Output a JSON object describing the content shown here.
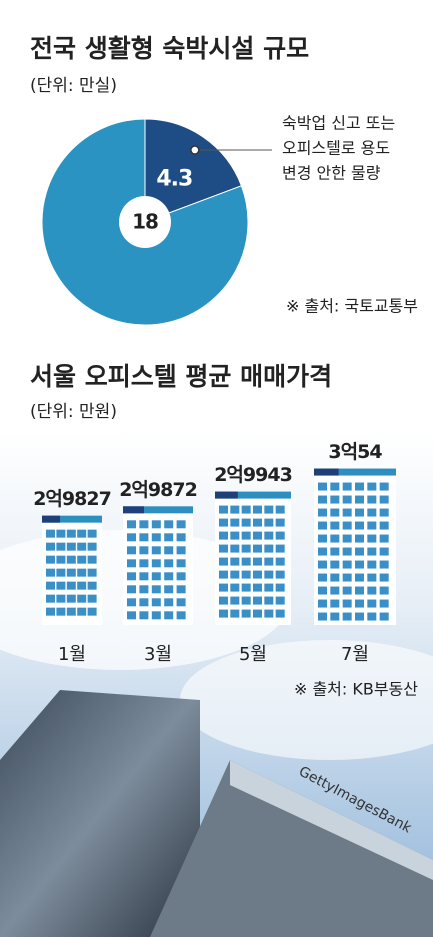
{
  "chart_data": [
    {
      "type": "pie",
      "title": "전국 생활형 숙박시설 규모",
      "subtitle": "(단위: 만실)",
      "values": [
        4.3,
        18
      ],
      "colors": [
        "#1e4d85",
        "#2a93c2"
      ],
      "annotation": [
        "숙박업 신고 또는",
        "오피스텔로 용도",
        "변경 안한 물량"
      ],
      "source": "※ 출처: 국토교통부"
    },
    {
      "type": "bar",
      "title": "서울 오피스텔 평균 매매가격",
      "subtitle": "(단위: 만원)",
      "categories": [
        "1월",
        "3월",
        "5월",
        "7월"
      ],
      "values": [
        29827,
        29872,
        29943,
        30054
      ],
      "value_labels": [
        "2억9827",
        "2억9872",
        "2억9943",
        "3억54"
      ],
      "ylim": [
        29300,
        30100
      ],
      "color": "#ffffff",
      "source": "※ 출처: KB부동산",
      "watermark": "GettyImagesBank"
    }
  ]
}
